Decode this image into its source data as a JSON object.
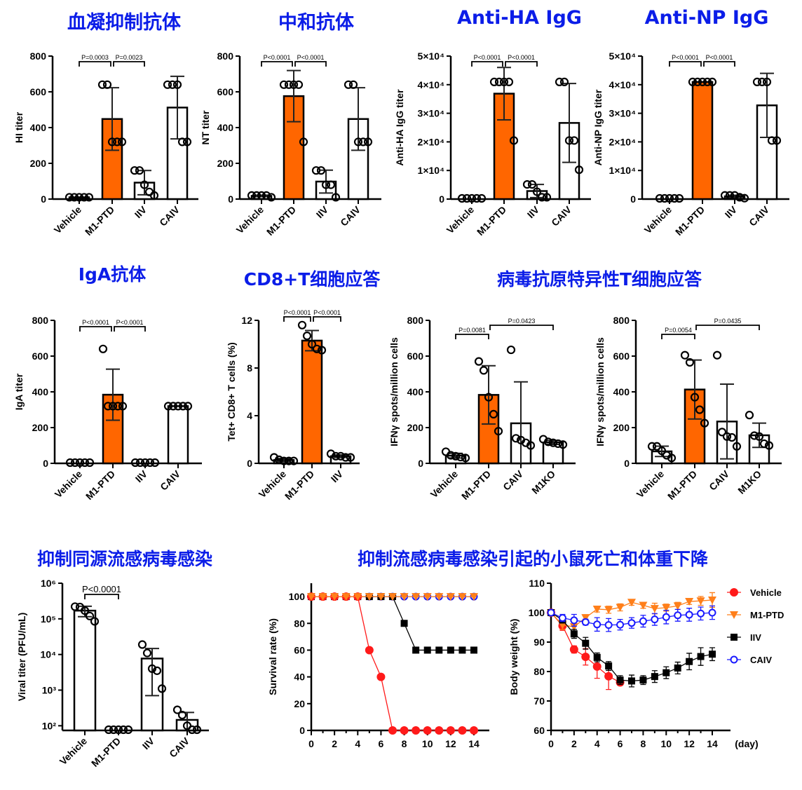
{
  "sections": [
    {
      "title": "血凝抑制抗体"
    },
    {
      "title": "中和抗体"
    },
    {
      "title": "Anti-HA IgG"
    },
    {
      "title": "Anti-NP IgG"
    },
    {
      "title": "IgA抗体"
    },
    {
      "title": "CD8+T细胞应答"
    },
    {
      "title": "病毒抗原特异性T细胞应答"
    },
    {
      "title": "抑制同源流感病毒感染"
    },
    {
      "title": "抑制流感病毒感染引起的小鼠死亡和体重下降"
    }
  ],
  "colors": {
    "title": "#0b1de8",
    "highlight_bar": "#ff6600",
    "bar": "#ffffff"
  },
  "chart_data": [
    {
      "type": "bar",
      "ylabel": "HI titer",
      "ylim": [
        0,
        800
      ],
      "yticks": [
        0,
        200,
        400,
        600,
        800
      ],
      "ytick_labels": [
        "0",
        "200",
        "400",
        "600",
        "800"
      ],
      "categories": [
        "Vehicle",
        "M1-PTD",
        "IIV",
        "CAIV"
      ],
      "points": [
        [
          10,
          10,
          10,
          10,
          10
        ],
        [
          640,
          640,
          320,
          320,
          320
        ],
        [
          160,
          160,
          80,
          40,
          20
        ],
        [
          640,
          640,
          640,
          320,
          320
        ]
      ],
      "means": [
        10,
        448,
        92,
        512
      ],
      "sd": [
        0,
        175,
        68,
        175
      ],
      "bar_colors": [
        "#ffffff",
        "#ff6600",
        "#ffffff",
        "#ffffff"
      ],
      "comparisons": [
        {
          "groups": [
            0,
            1
          ],
          "label": "P=0.0003"
        },
        {
          "groups": [
            1,
            2
          ],
          "label": "P=0.0023"
        }
      ]
    },
    {
      "type": "bar",
      "ylabel": "NT titer",
      "ylim": [
        0,
        800
      ],
      "yticks": [
        0,
        200,
        400,
        600,
        800
      ],
      "ytick_labels": [
        "0",
        "200",
        "400",
        "600",
        "800"
      ],
      "categories": [
        "Vehicle",
        "M1-PTD",
        "IIV",
        "CAIV"
      ],
      "points": [
        [
          20,
          20,
          20,
          20,
          10
        ],
        [
          640,
          640,
          640,
          640,
          320
        ],
        [
          160,
          160,
          80,
          80,
          10
        ],
        [
          640,
          640,
          320,
          320,
          320
        ]
      ],
      "means": [
        18,
        576,
        98,
        448
      ],
      "sd": [
        4,
        143,
        64,
        175
      ],
      "bar_colors": [
        "#ffffff",
        "#ff6600",
        "#ffffff",
        "#ffffff"
      ],
      "comparisons": [
        {
          "groups": [
            0,
            1
          ],
          "label": "P<0.0001"
        },
        {
          "groups": [
            1,
            2
          ],
          "label": "P<0.0001"
        }
      ]
    },
    {
      "type": "bar",
      "ylabel": "Anti-HA IgG titer",
      "ylim": [
        0,
        50000
      ],
      "yticks": [
        0,
        10000,
        20000,
        30000,
        40000,
        50000
      ],
      "ytick_labels": [
        "0",
        "1×10⁴",
        "2×10⁴",
        "3×10⁴",
        "4×10⁴",
        "5×10⁴"
      ],
      "categories": [
        "Vehicle",
        "M1-PTD",
        "IIV",
        "CAIV"
      ],
      "points": [
        [
          0,
          0,
          0,
          0,
          0
        ],
        [
          40960,
          40960,
          40960,
          40960,
          20480
        ],
        [
          5120,
          5120,
          2560,
          640,
          640
        ],
        [
          40960,
          40960,
          20480,
          20480,
          10240
        ]
      ],
      "means": [
        0,
        36864,
        2816,
        26624
      ],
      "sd": [
        0,
        9159,
        2300,
        13800
      ],
      "bar_colors": [
        "#ffffff",
        "#ff6600",
        "#ffffff",
        "#ffffff"
      ],
      "comparisons": [
        {
          "groups": [
            0,
            1
          ],
          "label": "P<0.0001"
        },
        {
          "groups": [
            1,
            2
          ],
          "label": "P<0.0001"
        }
      ]
    },
    {
      "type": "bar",
      "ylabel": "Anti-NP IgG titer",
      "ylim": [
        0,
        50000
      ],
      "yticks": [
        0,
        10000,
        20000,
        30000,
        40000,
        50000
      ],
      "ytick_labels": [
        "0",
        "1×10⁴",
        "2×10⁴",
        "3×10⁴",
        "4×10⁴",
        "5×10⁴"
      ],
      "categories": [
        "Vehicle",
        "M1-PTD",
        "IIV",
        "CAIV"
      ],
      "points": [
        [
          0,
          0,
          0,
          0,
          0
        ],
        [
          40960,
          40960,
          40960,
          40960,
          40960
        ],
        [
          1280,
          1280,
          1280,
          640,
          320
        ],
        [
          40960,
          40960,
          40960,
          20480,
          20480
        ]
      ],
      "means": [
        0,
        40960,
        960,
        32768
      ],
      "sd": [
        0,
        0,
        400,
        11200
      ],
      "bar_colors": [
        "#ffffff",
        "#ff6600",
        "#ffffff",
        "#ffffff"
      ],
      "comparisons": [
        {
          "groups": [
            0,
            1
          ],
          "label": "P<0.0001"
        },
        {
          "groups": [
            1,
            2
          ],
          "label": "P<0.0001"
        }
      ]
    },
    {
      "type": "bar",
      "ylabel": "IgA titer",
      "ylim": [
        0,
        800
      ],
      "yticks": [
        0,
        200,
        400,
        600,
        800
      ],
      "ytick_labels": [
        "0",
        "200",
        "400",
        "600",
        "800"
      ],
      "categories": [
        "Vehicle",
        "M1-PTD",
        "IIV",
        "CAIV"
      ],
      "points": [
        [
          0,
          0,
          0,
          0,
          0
        ],
        [
          640,
          320,
          320,
          320,
          320
        ],
        [
          0,
          0,
          0,
          0,
          0
        ],
        [
          320,
          320,
          320,
          320,
          320
        ]
      ],
      "means": [
        0,
        384,
        0,
        320
      ],
      "sd": [
        0,
        143,
        0,
        0
      ],
      "bar_colors": [
        "#ffffff",
        "#ff6600",
        "#ffffff",
        "#ffffff"
      ],
      "comparisons": [
        {
          "groups": [
            0,
            1
          ],
          "label": "P<0.0001"
        },
        {
          "groups": [
            1,
            2
          ],
          "label": "P<0.0001"
        }
      ]
    },
    {
      "type": "bar",
      "ylabel": "Tet+ CD8+ T cells (%)",
      "ylim": [
        0,
        12
      ],
      "yticks": [
        0,
        4,
        8,
        12
      ],
      "ytick_labels": [
        "0",
        "4",
        "8",
        "12"
      ],
      "categories": [
        "Vehicle",
        "M1-PTD",
        "IIV"
      ],
      "points": [
        [
          0.5,
          0.3,
          0.2,
          0.2,
          0.2
        ],
        [
          11.6,
          10.7,
          10.0,
          9.6,
          9.5
        ],
        [
          0.8,
          0.6,
          0.6,
          0.5,
          0.5
        ]
      ],
      "means": [
        0.28,
        10.3,
        0.6
      ],
      "sd": [
        0.13,
        0.85,
        0.11
      ],
      "bar_colors": [
        "#ffffff",
        "#ff6600",
        "#ffffff"
      ],
      "comparisons": [
        {
          "groups": [
            0,
            1
          ],
          "label": "P<0.0001"
        },
        {
          "groups": [
            1,
            2
          ],
          "label": "P<0.0001"
        }
      ]
    },
    {
      "type": "bar",
      "ylabel": "IFNγ spots/million cells",
      "ylim": [
        0,
        800
      ],
      "yticks": [
        0,
        200,
        400,
        600,
        800
      ],
      "ytick_labels": [
        "0",
        "200",
        "400",
        "600",
        "800"
      ],
      "categories": [
        "Vehicle",
        "M1-PTD",
        "CAIV",
        "M1KO"
      ],
      "points": [
        [
          65,
          45,
          40,
          35,
          30
        ],
        [
          570,
          520,
          370,
          275,
          180
        ],
        [
          635,
          140,
          130,
          115,
          100
        ],
        [
          135,
          120,
          115,
          110,
          105
        ]
      ],
      "means": [
        43,
        383,
        224,
        117
      ],
      "sd": [
        13,
        163,
        232,
        11
      ],
      "bar_colors": [
        "#ffffff",
        "#ff6600",
        "#ffffff",
        "#ffffff"
      ],
      "comparisons": [
        {
          "groups": [
            0,
            1
          ],
          "label": "P=0.0081"
        },
        {
          "groups": [
            1,
            3
          ],
          "label": "P=0.0423"
        }
      ]
    },
    {
      "type": "bar",
      "ylabel": "IFNγ spots/million cells",
      "ylim": [
        0,
        800
      ],
      "yticks": [
        0,
        200,
        400,
        600,
        800
      ],
      "ytick_labels": [
        "0",
        "200",
        "400",
        "600",
        "800"
      ],
      "categories": [
        "Vehicle",
        "M1-PTD",
        "CAIV",
        "M1KO"
      ],
      "points": [
        [
          95,
          95,
          70,
          45,
          30
        ],
        [
          605,
          565,
          370,
          300,
          225
        ],
        [
          605,
          175,
          150,
          145,
          95
        ],
        [
          270,
          155,
          150,
          110,
          100
        ]
      ],
      "means": [
        67,
        413,
        234,
        157
      ],
      "sd": [
        29,
        165,
        209,
        68
      ],
      "bar_colors": [
        "#ffffff",
        "#ff6600",
        "#ffffff",
        "#ffffff"
      ],
      "comparisons": [
        {
          "groups": [
            0,
            1
          ],
          "label": "P=0.0054"
        },
        {
          "groups": [
            1,
            3
          ],
          "label": "P=0.0435"
        }
      ]
    },
    {
      "type": "bar",
      "yscale": "log",
      "ylabel": "Viral titer (PFU/mL)",
      "ylim": [
        74,
        1000000
      ],
      "yticks": [
        100,
        1000,
        10000,
        100000,
        1000000
      ],
      "ytick_labels": [
        "10²",
        "10³",
        "10⁴",
        "10⁵",
        "10⁶"
      ],
      "categories": [
        "Vehicle",
        "M1-PTD",
        "IIV",
        "CAIV"
      ],
      "points": [
        [
          220000,
          215000,
          170000,
          120000,
          85000
        ],
        [
          74,
          74,
          74,
          74,
          74
        ],
        [
          19000,
          11000,
          4000,
          3500,
          1100
        ],
        [
          280,
          200,
          100,
          74,
          74
        ]
      ],
      "means": [
        170000,
        74,
        7700,
        146
      ],
      "sd": [
        55000,
        0,
        7000,
        90
      ],
      "bar_colors": [
        "#ffffff",
        "#ffffff",
        "#ffffff",
        "#ffffff"
      ],
      "comparisons": [
        {
          "groups": [
            0,
            1
          ],
          "label": "P<0.0001"
        }
      ]
    },
    {
      "type": "line",
      "ylabel": "Survival rate (%)",
      "xlim": [
        0,
        14
      ],
      "ylim": [
        0,
        110
      ],
      "xticks": [
        0,
        2,
        4,
        6,
        8,
        10,
        12,
        14
      ],
      "xtick_labels": [
        "0",
        "2",
        "4",
        "6",
        "8",
        "10",
        "12",
        "14"
      ],
      "yticks": [
        0,
        20,
        40,
        60,
        80,
        100
      ],
      "ytick_labels": [
        "0",
        "20",
        "40",
        "60",
        "80",
        "100"
      ],
      "series": [
        {
          "name": "CAIV",
          "color": "#1a1aff",
          "marker": "open-circle",
          "x": [
            0,
            1,
            2,
            3,
            4,
            5,
            6,
            7,
            8,
            9,
            10,
            11,
            12,
            13,
            14
          ],
          "y": [
            100,
            100,
            100,
            100,
            100,
            100,
            100,
            100,
            100,
            100,
            100,
            100,
            100,
            100,
            100
          ]
        },
        {
          "name": "IIV",
          "color": "#000000",
          "marker": "square",
          "x": [
            0,
            1,
            2,
            3,
            4,
            5,
            6,
            7,
            8,
            9,
            10,
            11,
            12,
            13,
            14
          ],
          "y": [
            100,
            100,
            100,
            100,
            100,
            100,
            100,
            100,
            80,
            60,
            60,
            60,
            60,
            60,
            60
          ]
        },
        {
          "name": "Vehicle",
          "color": "#ff1a1a",
          "marker": "circle",
          "x": [
            0,
            1,
            2,
            3,
            4,
            5,
            6,
            7,
            8,
            9,
            10,
            11,
            12,
            13,
            14
          ],
          "y": [
            100,
            100,
            100,
            100,
            100,
            60,
            40,
            0,
            0,
            0,
            0,
            0,
            0,
            0,
            0
          ]
        },
        {
          "name": "M1-PTD",
          "color": "#ff7f1a",
          "marker": "triangle-down",
          "x": [
            0,
            1,
            2,
            3,
            4,
            5,
            6,
            7,
            8,
            9,
            10,
            11,
            12,
            13,
            14
          ],
          "y": [
            100,
            100,
            100,
            100,
            100,
            100,
            100,
            100,
            100,
            100,
            100,
            100,
            100,
            100,
            100
          ]
        }
      ]
    },
    {
      "type": "line",
      "ylabel": "Body weight (%)",
      "xlabel": "(day)",
      "xlim": [
        0,
        14
      ],
      "ylim": [
        60,
        110
      ],
      "xticks": [
        0,
        2,
        4,
        6,
        8,
        10,
        12,
        14
      ],
      "xtick_labels": [
        "0",
        "2",
        "4",
        "6",
        "8",
        "10",
        "12",
        "14"
      ],
      "yticks": [
        60,
        70,
        80,
        90,
        100,
        110
      ],
      "ytick_labels": [
        "60",
        "70",
        "80",
        "90",
        "100",
        "110"
      ],
      "legend": "right",
      "series": [
        {
          "name": "Vehicle",
          "color": "#ff1a1a",
          "marker": "circle",
          "x": [
            0,
            1,
            2,
            3,
            4,
            5,
            6
          ],
          "y": [
            100,
            95.5,
            87.5,
            85,
            81.7,
            78.4,
            76.3
          ],
          "sd": [
            0,
            1.5,
            1.2,
            2.8,
            4,
            4.5,
            1
          ]
        },
        {
          "name": "M1-PTD",
          "color": "#ff7f1a",
          "marker": "triangle-down",
          "x": [
            0,
            1,
            2,
            3,
            4,
            5,
            6,
            7,
            8,
            9,
            10,
            11,
            12,
            13,
            14
          ],
          "y": [
            100,
            95.8,
            95.2,
            98.3,
            101.2,
            101,
            101.8,
            103.5,
            102.5,
            101.4,
            101.7,
            102.3,
            103.8,
            104,
            104.3
          ],
          "sd": [
            0,
            1.5,
            1.5,
            1,
            1,
            1.2,
            1.2,
            1,
            1,
            1.8,
            1.2,
            1.2,
            1,
            1.5,
            2.5
          ]
        },
        {
          "name": "IIV",
          "color": "#000000",
          "marker": "square",
          "x": [
            0,
            1,
            2,
            3,
            4,
            5,
            6,
            7,
            8,
            9,
            10,
            11,
            12,
            13,
            14
          ],
          "y": [
            100,
            97.5,
            92.8,
            89.6,
            84.8,
            81.9,
            77.1,
            76.8,
            77.1,
            78.3,
            79.6,
            81.2,
            83.4,
            85.1,
            85.9
          ],
          "sd": [
            0,
            1,
            1.5,
            2,
            1.5,
            1.5,
            1.5,
            2,
            1.5,
            2,
            2,
            2,
            2.8,
            3,
            2.2
          ]
        },
        {
          "name": "CAIV",
          "color": "#1a1aff",
          "marker": "open-circle",
          "x": [
            0,
            1,
            2,
            3,
            4,
            5,
            6,
            7,
            8,
            9,
            10,
            11,
            12,
            13,
            14
          ],
          "y": [
            100,
            98.2,
            97.4,
            96.8,
            96,
            95.8,
            95.9,
            96.5,
            97.1,
            97.7,
            98.5,
            99.1,
            99.3,
            99.7,
            100
          ],
          "sd": [
            0,
            1.2,
            2,
            1,
            2.3,
            2.2,
            1.8,
            1.8,
            2,
            2,
            2.3,
            2,
            2.2,
            2.2,
            2.3
          ]
        }
      ]
    }
  ]
}
